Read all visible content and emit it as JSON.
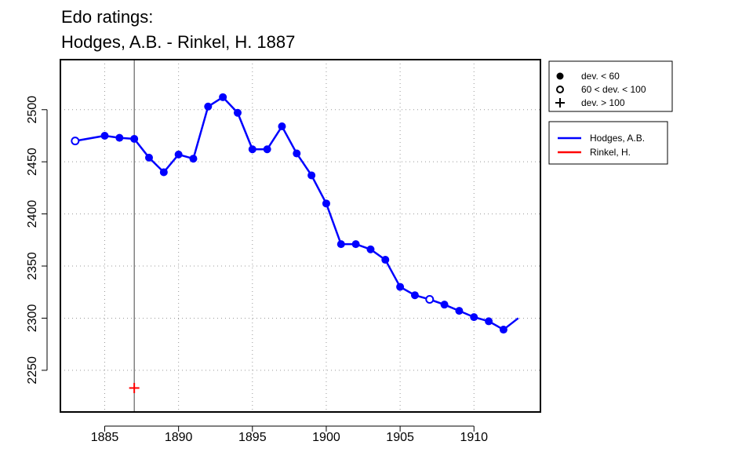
{
  "chart_data": {
    "type": "line",
    "title": "Edo ratings:",
    "subtitle": "Hodges, A.B. - Rinkel, H. 1887",
    "xlabel": "",
    "ylabel": "",
    "xlim": [
      1882,
      1914.5
    ],
    "ylim": [
      2210,
      2548
    ],
    "x_ticks": [
      1885,
      1890,
      1895,
      1900,
      1905,
      1910
    ],
    "y_ticks": [
      2250,
      2300,
      2350,
      2400,
      2450,
      2500
    ],
    "grid": true,
    "marker_line_year": 1887,
    "marker_legend": [
      {
        "symbol": "filled-circle",
        "label": "dev. < 60"
      },
      {
        "symbol": "open-circle",
        "label": "60 < dev. < 100"
      },
      {
        "symbol": "plus",
        "label": "dev. > 100"
      }
    ],
    "series": [
      {
        "name": "Hodges, A.B.",
        "color": "#0000ff",
        "points": [
          {
            "x": 1883,
            "y": 2470,
            "marker": "open"
          },
          {
            "x": 1885,
            "y": 2475,
            "marker": "filled"
          },
          {
            "x": 1886,
            "y": 2473,
            "marker": "filled"
          },
          {
            "x": 1887,
            "y": 2472,
            "marker": "filled"
          },
          {
            "x": 1888,
            "y": 2454,
            "marker": "filled"
          },
          {
            "x": 1889,
            "y": 2440,
            "marker": "filled"
          },
          {
            "x": 1890,
            "y": 2457,
            "marker": "filled"
          },
          {
            "x": 1891,
            "y": 2453,
            "marker": "filled"
          },
          {
            "x": 1892,
            "y": 2503,
            "marker": "filled"
          },
          {
            "x": 1893,
            "y": 2512,
            "marker": "filled"
          },
          {
            "x": 1894,
            "y": 2497,
            "marker": "filled"
          },
          {
            "x": 1895,
            "y": 2462,
            "marker": "filled"
          },
          {
            "x": 1896,
            "y": 2462,
            "marker": "filled"
          },
          {
            "x": 1897,
            "y": 2484,
            "marker": "filled"
          },
          {
            "x": 1898,
            "y": 2458,
            "marker": "filled"
          },
          {
            "x": 1899,
            "y": 2437,
            "marker": "filled"
          },
          {
            "x": 1900,
            "y": 2410,
            "marker": "filled"
          },
          {
            "x": 1901,
            "y": 2371,
            "marker": "filled"
          },
          {
            "x": 1902,
            "y": 2371,
            "marker": "filled"
          },
          {
            "x": 1903,
            "y": 2366,
            "marker": "filled"
          },
          {
            "x": 1904,
            "y": 2356,
            "marker": "filled"
          },
          {
            "x": 1905,
            "y": 2330,
            "marker": "filled"
          },
          {
            "x": 1906,
            "y": 2322,
            "marker": "filled"
          },
          {
            "x": 1907,
            "y": 2318,
            "marker": "open"
          },
          {
            "x": 1908,
            "y": 2313,
            "marker": "filled"
          },
          {
            "x": 1909,
            "y": 2307,
            "marker": "filled"
          },
          {
            "x": 1910,
            "y": 2301,
            "marker": "filled"
          },
          {
            "x": 1911,
            "y": 2297,
            "marker": "filled"
          },
          {
            "x": 1912,
            "y": 2289,
            "marker": "filled"
          },
          {
            "x": 1913,
            "y": 2300,
            "marker": "none"
          }
        ]
      },
      {
        "name": "Rinkel, H.",
        "color": "#ff0000",
        "points": [
          {
            "x": 1887,
            "y": 2233,
            "marker": "plus"
          }
        ]
      }
    ]
  }
}
